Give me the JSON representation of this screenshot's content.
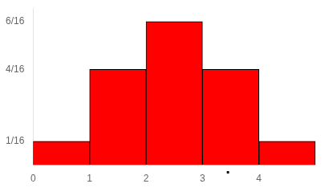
{
  "chart_data": {
    "type": "histogram",
    "bins": [
      0,
      1,
      2,
      3,
      4,
      5
    ],
    "values": [
      0.0625,
      0.25,
      0.375,
      0.25,
      0.0625
    ],
    "color": "#FF0000",
    "xlim": [
      0,
      5
    ],
    "xticks": [
      0,
      1,
      2,
      3,
      4
    ],
    "ylim": [
      0,
      0.41
    ],
    "yticks": [
      {
        "value": 0.0625,
        "label": "1/16"
      },
      {
        "value": 0.25,
        "label": "4/16"
      },
      {
        "value": 0.375,
        "label": "6/16"
      }
    ],
    "annotations": [
      {
        "x": 3.45,
        "text": "·"
      }
    ],
    "grid": false
  }
}
